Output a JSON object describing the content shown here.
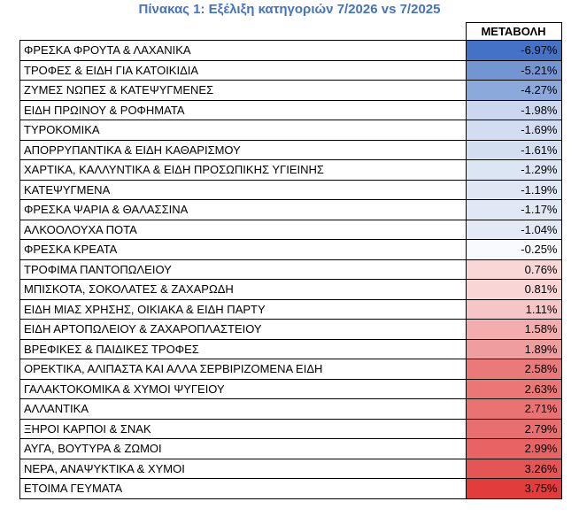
{
  "title": "Πίνακας 1: Εξέλιξη κατηγοριών 7/2026 vs 7/2025",
  "table": {
    "column_header": "ΜΕΤΑΒΟΛΗ",
    "rows": [
      [
        "ΦΡΕΣΚΑ ΦΡΟΥΤΑ & ΛΑΧΑΝΙΚΑ",
        "-6.97%"
      ],
      [
        "ΤΡΟΦΕΣ & ΕΙΔΗ ΓΙΑ ΚΑΤΟΙΚΙΔΙΑ",
        "-5.21%"
      ],
      [
        "ΖΥΜΕΣ ΝΩΠΕΣ & ΚΑΤΕΨΥΓΜΕΝΕΣ",
        "-4.27%"
      ],
      [
        "ΕΙΔΗ ΠΡΩΙΝΟΥ & ΡΟΦΗΜΑΤΑ",
        "-1.98%"
      ],
      [
        "ΤΥΡΟΚΟΜΙΚΑ",
        "-1.69%"
      ],
      [
        "ΑΠΟΡΡΥΠΑΝΤΙΚΑ & ΕΙΔΗ ΚΑΘΑΡΙΣΜΟΥ",
        "-1.61%"
      ],
      [
        "ΧΑΡΤΙΚΑ, ΚΑΛΛΥΝΤΙΚΑ & ΕΙΔΗ ΠΡΟΣΩΠΙΚΗΣ ΥΓΙΕΙΝΗΣ",
        "-1.29%"
      ],
      [
        "ΚΑΤΕΨΥΓΜΕΝΑ",
        "-1.19%"
      ],
      [
        "ΦΡΕΣΚΑ ΨΑΡΙΑ & ΘΑΛΑΣΣΙΝΑ",
        "-1.17%"
      ],
      [
        "ΑΛΚΟΟΛΟΥΧΑ ΠΟΤΑ",
        "-1.04%"
      ],
      [
        "ΦΡΕΣΚΑ ΚΡΕΑΤΑ",
        "-0.25%"
      ],
      [
        "ΤΡΟΦΙΜΑ ΠΑΝΤΟΠΩΛΕΙΟΥ",
        "0.76%"
      ],
      [
        "ΜΠΙΣΚΟΤΑ, ΣΟΚΟΛΑΤΕΣ & ΖΑΧΑΡΩΔΗ",
        "0.81%"
      ],
      [
        "ΕΙΔΗ ΜΙΑΣ ΧΡΗΣΗΣ, ΟΙΚΙΑΚΑ & ΕΙΔΗ ΠΑΡΤΥ",
        "1.11%"
      ],
      [
        "ΕΙΔΗ ΑΡΤΟΠΩΛΕΙΟΥ & ΖΑΧΑΡΟΠΛΑΣΤΕΙΟΥ",
        "1.58%"
      ],
      [
        "ΒΡΕΦΙΚΕΣ & ΠΑΙΔΙΚΕΣ ΤΡΟΦΕΣ",
        "1.89%"
      ],
      [
        "ΟΡΕΚΤΙΚΑ, ΑΛΙΠΑΣΤΑ ΚΑΙ ΑΛΛΑ ΣΕΡΒΙΡΙΖΟΜΕΝΑ ΕΙΔΗ",
        "2.58%"
      ],
      [
        "ΓΑΛΑΚΤΟΚΟΜΙΚΑ & ΧΥΜΟΙ ΨΥΓΕΙΟΥ",
        "2.63%"
      ],
      [
        "ΑΛΛΑΝΤΙΚΑ",
        "2.71%"
      ],
      [
        "ΞΗΡΟΙ ΚΑΡΠΟΙ & ΣΝΑΚ",
        "2.79%"
      ],
      [
        "ΑΥΓΑ, ΒΟΥΤΥΡΑ & ΖΩΜΟΙ",
        "2.99%"
      ],
      [
        "ΝΕΡΑ, ΑΝΑΨΥΚΤΙΚΑ & ΧΥΜΟΙ",
        "3.26%"
      ],
      [
        "ΕΤΟΙΜΑ ΓΕΥΜΑΤΑ",
        "3.75%"
      ]
    ]
  }
}
